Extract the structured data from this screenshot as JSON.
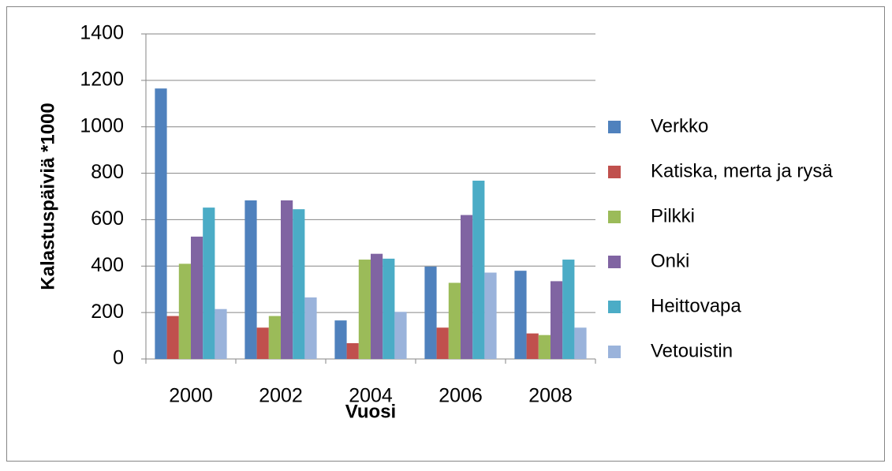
{
  "chart_data": {
    "type": "bar",
    "x_label": "Vuosi",
    "y_label": "Kalastuspäiviä *1000",
    "categories": [
      "2000",
      "2002",
      "2004",
      "2006",
      "2008"
    ],
    "series": [
      {
        "name": "Verkko",
        "color": "#4F81BD",
        "values": [
          1165,
          683,
          166,
          398,
          380
        ]
      },
      {
        "name": "Katiska, merta ja rysä",
        "color": "#C0504D",
        "values": [
          185,
          135,
          68,
          135,
          110
        ]
      },
      {
        "name": "Pilkki",
        "color": "#9BBB59",
        "values": [
          410,
          185,
          428,
          328,
          103
        ]
      },
      {
        "name": "Onki",
        "color": "#8064A2",
        "values": [
          527,
          683,
          453,
          620,
          335
        ]
      },
      {
        "name": "Heittovapa",
        "color": "#4BACC6",
        "values": [
          652,
          645,
          432,
          768,
          428
        ]
      },
      {
        "name": "Vetouistin",
        "color": "#9AB3DB",
        "values": [
          215,
          265,
          203,
          372,
          135
        ]
      }
    ],
    "ylim": [
      0,
      1400
    ],
    "yticks": [
      0,
      200,
      400,
      600,
      800,
      1000,
      1200,
      1400
    ],
    "grid": true,
    "legend": "right"
  }
}
